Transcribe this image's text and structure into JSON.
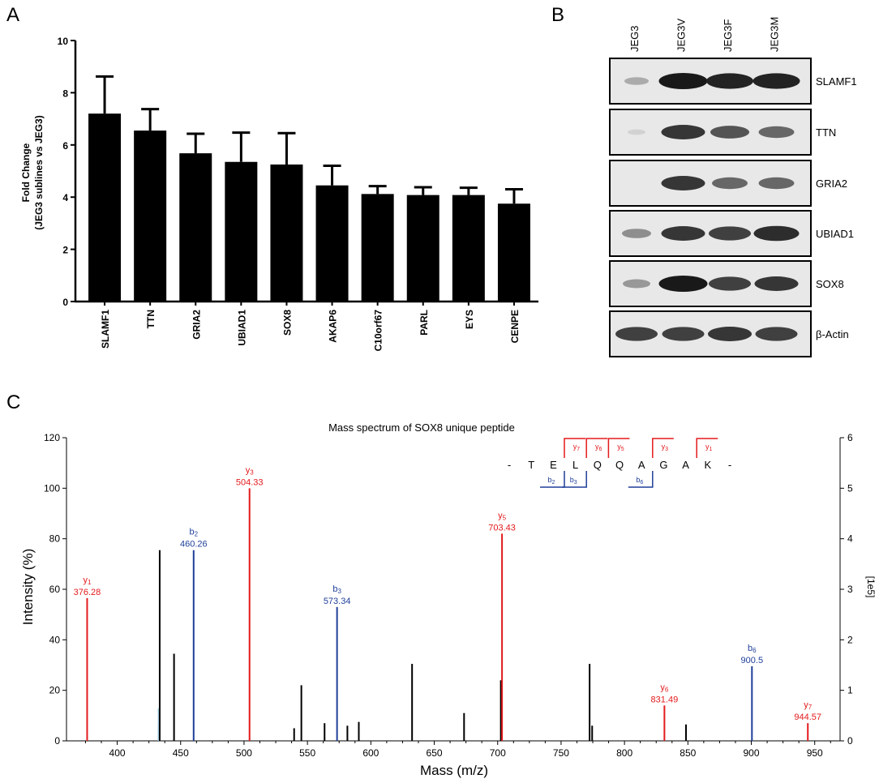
{
  "panels": {
    "a": "A",
    "b": "B",
    "c": "C"
  },
  "colors": {
    "y_ion": "#e31a1c",
    "b_ion": "#1f3f99",
    "other": "#000000",
    "faint": "#9ecae1"
  },
  "chart_a": {
    "type": "bar",
    "ylabel_line1": "Fold Change",
    "ylabel_line2": "(JEG3 sublines vs JEG3)",
    "ylim": [
      0,
      10
    ],
    "yticks": [
      "0",
      "2",
      "4",
      "6",
      "8",
      "10"
    ],
    "categories": [
      "SLAMF1",
      "TTN",
      "GRIA2",
      "UBIAD1",
      "SOX8",
      "AKAP6",
      "C10orf67",
      "PARL",
      "EYS",
      "CENPE"
    ],
    "values": [
      7.2,
      6.55,
      5.68,
      5.35,
      5.25,
      4.45,
      4.12,
      4.08,
      4.08,
      3.75
    ],
    "errors": [
      1.42,
      0.82,
      0.75,
      1.12,
      1.2,
      0.75,
      0.3,
      0.3,
      0.28,
      0.55
    ]
  },
  "western": {
    "lanes": [
      "JEG3",
      "JEG3V",
      "JEG3F",
      "JEG3M"
    ],
    "blots": [
      {
        "label": "SLAMF1",
        "intensity": [
          0.25,
          1,
          0.95,
          0.95
        ]
      },
      {
        "label": "TTN",
        "intensity": [
          0.05,
          0.85,
          0.7,
          0.6
        ]
      },
      {
        "label": "GRIA2",
        "intensity": [
          0,
          0.85,
          0.6,
          0.6
        ]
      },
      {
        "label": "UBIAD1",
        "intensity": [
          0.4,
          0.85,
          0.8,
          0.9
        ]
      },
      {
        "label": "SOX8",
        "intensity": [
          0.35,
          1,
          0.8,
          0.85
        ]
      },
      {
        "label": "β-Actin",
        "intensity": [
          0.8,
          0.8,
          0.85,
          0.8
        ]
      }
    ]
  },
  "chart_c": {
    "type": "bar",
    "title": "Mass spectrum of SOX8 unique peptide",
    "xlabel": "Mass (m/z)",
    "ylabel": "Intensity (%)",
    "y2label": "[1e5]",
    "xlim": [
      360,
      970
    ],
    "ylim": [
      0,
      120
    ],
    "y2lim": [
      0,
      6
    ],
    "xticks": [
      "400",
      "450",
      "500",
      "550",
      "600",
      "650",
      "700",
      "750",
      "800",
      "850",
      "900",
      "950"
    ],
    "yticks": [
      "0",
      "20",
      "40",
      "60",
      "80",
      "100",
      "120"
    ],
    "y2ticks": [
      "0",
      "1",
      "2",
      "3",
      "4",
      "5",
      "6"
    ],
    "annotated_peaks": [
      {
        "ion": "y",
        "sub": "1",
        "label": "376.28",
        "mz": 376.28,
        "intensity": 56.5
      },
      {
        "ion": "b",
        "sub": "2",
        "label": "460.26",
        "mz": 460.26,
        "intensity": 75.5
      },
      {
        "ion": "y",
        "sub": "3",
        "label": "504.33",
        "mz": 504.33,
        "intensity": 100
      },
      {
        "ion": "b",
        "sub": "3",
        "label": "573.34",
        "mz": 573.34,
        "intensity": 53
      },
      {
        "ion": "y",
        "sub": "5",
        "label": "703.43",
        "mz": 703.43,
        "intensity": 82
      },
      {
        "ion": "y",
        "sub": "6",
        "label": "831.49",
        "mz": 831.49,
        "intensity": 14
      },
      {
        "ion": "b",
        "sub": "6",
        "label": "900.5",
        "mz": 900.5,
        "intensity": 29.5
      },
      {
        "ion": "y",
        "sub": "7",
        "label": "944.57",
        "mz": 944.57,
        "intensity": 7
      }
    ],
    "other_peaks": [
      {
        "mz": 433.5,
        "intensity": 75.5
      },
      {
        "mz": 444.8,
        "intensity": 34.5
      },
      {
        "mz": 539.5,
        "intensity": 5
      },
      {
        "mz": 545.2,
        "intensity": 22
      },
      {
        "mz": 563.5,
        "intensity": 7
      },
      {
        "mz": 581.5,
        "intensity": 6
      },
      {
        "mz": 590.5,
        "intensity": 7.5
      },
      {
        "mz": 632.5,
        "intensity": 30.5
      },
      {
        "mz": 673.5,
        "intensity": 11
      },
      {
        "mz": 702.5,
        "intensity": 24
      },
      {
        "mz": 772.5,
        "intensity": 30.5
      },
      {
        "mz": 774.5,
        "intensity": 6
      },
      {
        "mz": 848.5,
        "intensity": 6.5
      }
    ],
    "faint_peak": {
      "mz": 432.5,
      "intensity": 6
    },
    "sequence": [
      "-",
      "T",
      "E",
      "L",
      "Q",
      "Q",
      "A",
      "G",
      "A",
      "K",
      "-"
    ],
    "y_fragments": [
      {
        "sub": "7",
        "after": 2
      },
      {
        "sub": "6",
        "after": 3
      },
      {
        "sub": "5",
        "after": 4
      },
      {
        "sub": "3",
        "after": 6
      },
      {
        "sub": "1",
        "after": 8
      }
    ],
    "b_fragments": [
      {
        "sub": "2",
        "after": 2
      },
      {
        "sub": "3",
        "after": 3
      },
      {
        "sub": "6",
        "after": 6
      }
    ]
  }
}
